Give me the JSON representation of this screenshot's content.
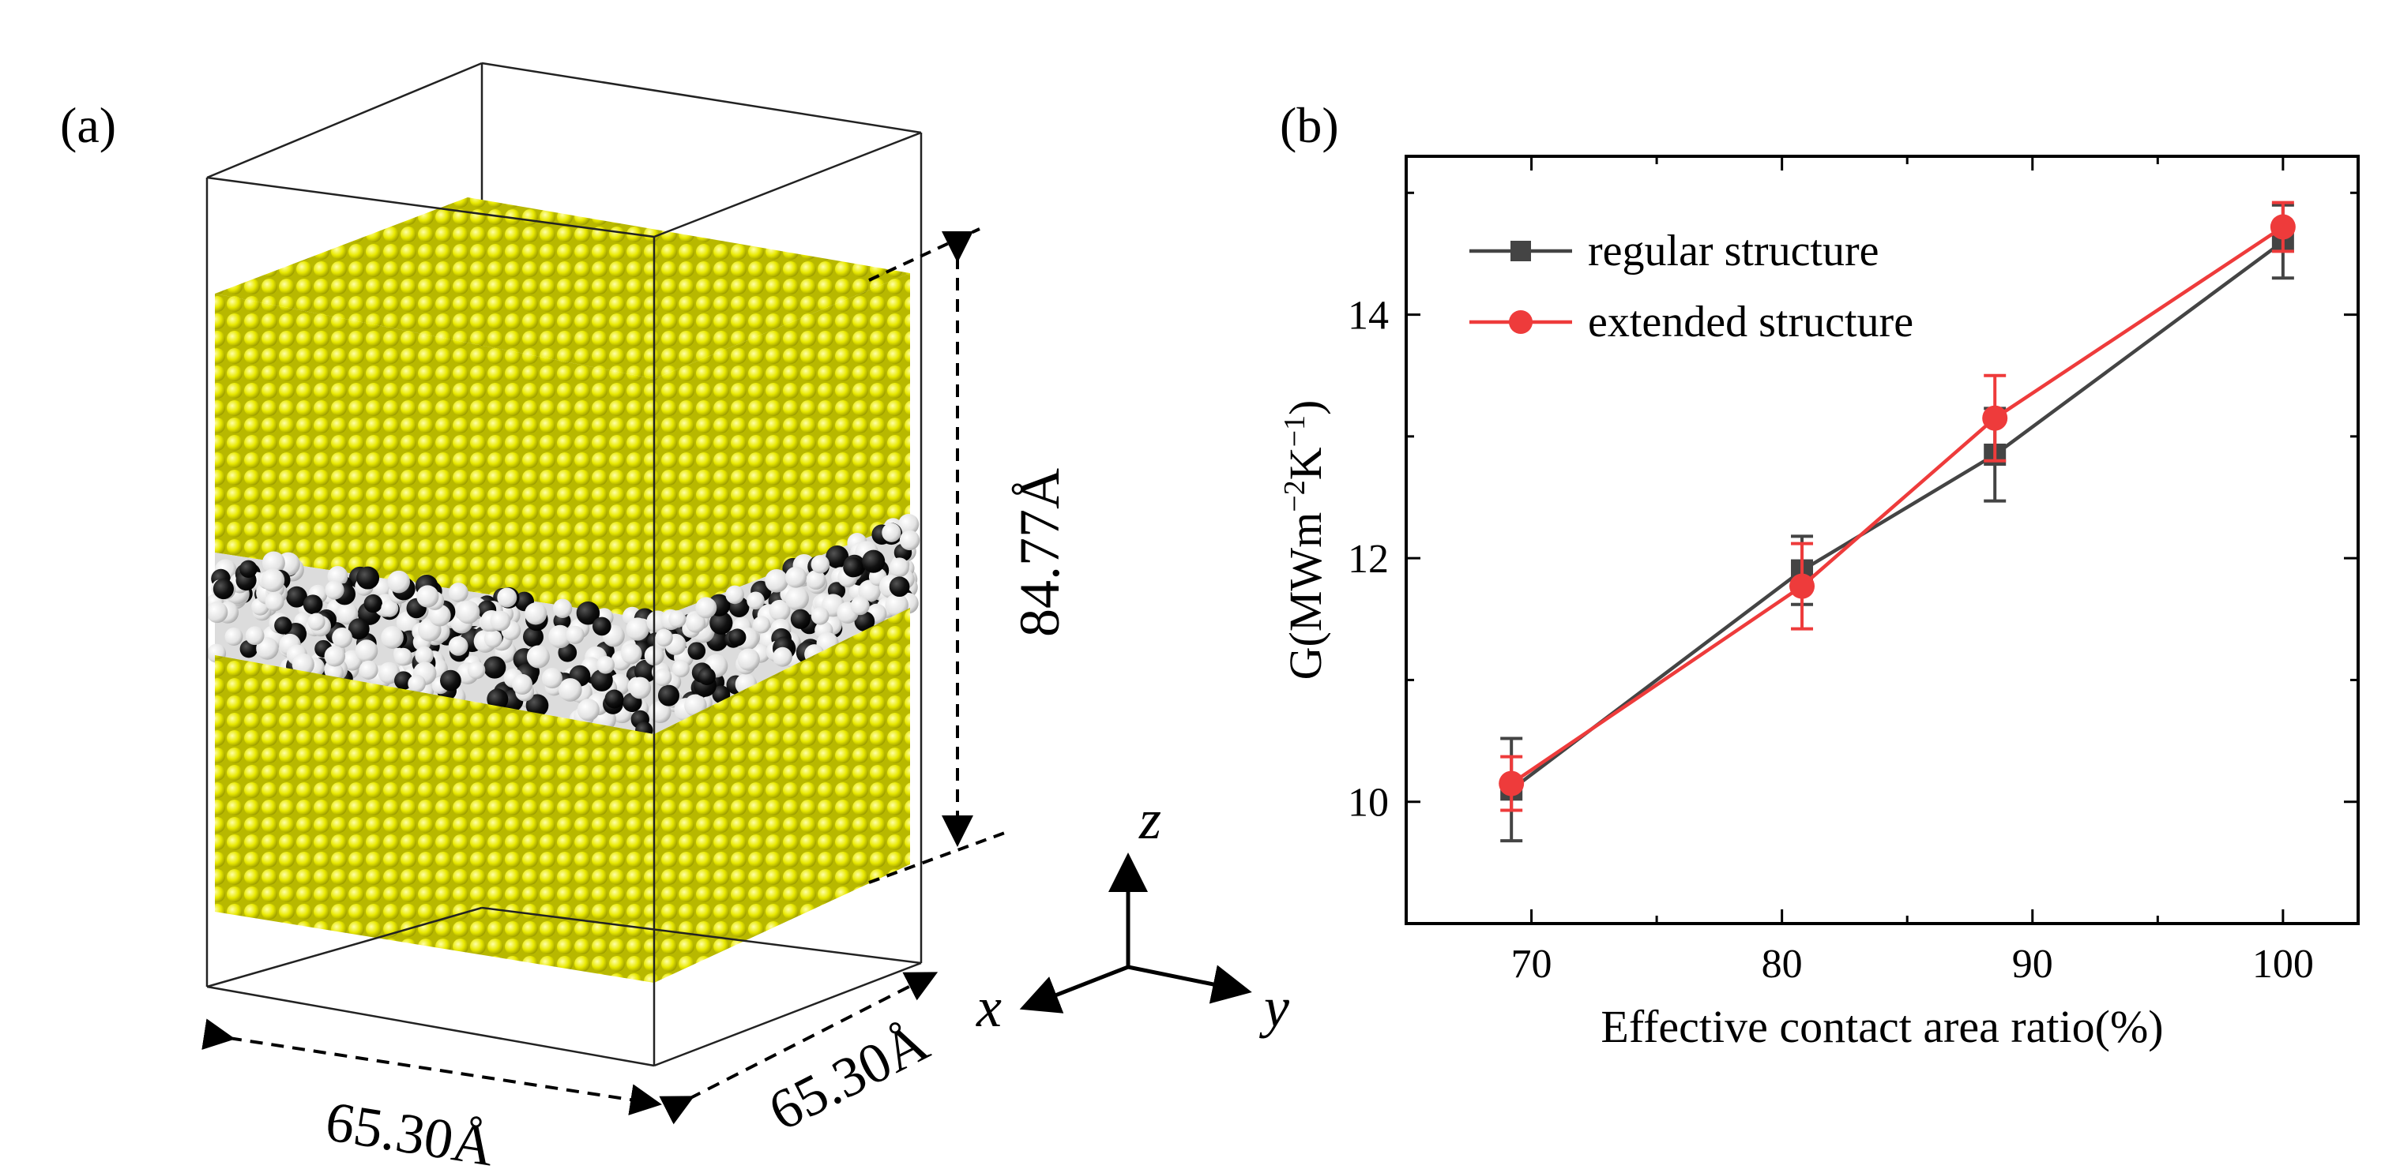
{
  "panel_a": {
    "label": "(a)",
    "dim_height": "84.77Å",
    "dim_width_x": "65.30Å",
    "dim_width_y": "65.30Å",
    "axis_z": "z",
    "axis_x": "x",
    "axis_y": "y",
    "colors": {
      "gold": "#e8e800",
      "carbon": "#000000",
      "hydrogen": "#e6e6e6"
    }
  },
  "panel_b": {
    "label": "(b)"
  },
  "chart_data": {
    "type": "line",
    "title": "",
    "xlabel": "Effective contact area ratio(%)",
    "ylabel_prefix": "G(MWm",
    "ylabel_sup1": "−2",
    "ylabel_mid": "K",
    "ylabel_sup2": "−1",
    "ylabel_suffix": ")",
    "xlim": [
      65,
      103
    ],
    "ylim": [
      9,
      15.3
    ],
    "xticks": [
      70,
      80,
      90,
      100
    ],
    "yticks": [
      10,
      12,
      14
    ],
    "legend_position": "top-left",
    "series": [
      {
        "name": "regular structure",
        "color": "#444444",
        "marker": "square",
        "x": [
          69.2,
          80.8,
          88.5,
          100
        ],
        "y": [
          10.1,
          11.9,
          12.85,
          14.6
        ],
        "err": [
          0.42,
          0.28,
          0.38,
          0.3
        ]
      },
      {
        "name": "extended structure",
        "color": "#ee3b3b",
        "marker": "circle",
        "x": [
          69.2,
          80.8,
          88.5,
          100
        ],
        "y": [
          10.15,
          11.77,
          13.15,
          14.72
        ],
        "err": [
          0.22,
          0.35,
          0.35,
          0.2
        ]
      }
    ]
  }
}
